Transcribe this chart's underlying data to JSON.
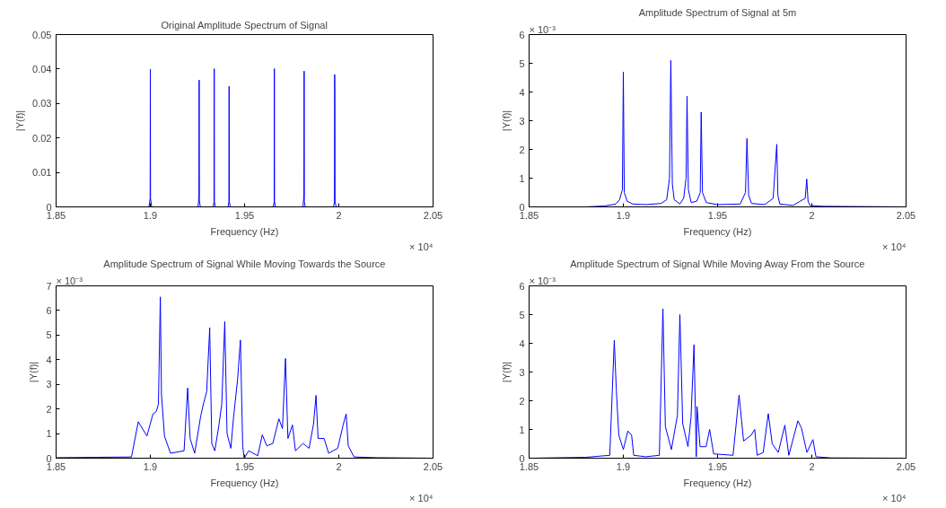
{
  "chart_data": [
    {
      "type": "line",
      "title": "Original Amplitude Spectrum of Signal",
      "xlabel": "Frequency (Hz)",
      "ylabel": "|Y(f)|",
      "xlim": [
        1.85,
        2.05
      ],
      "xticks": [
        1.85,
        1.9,
        1.95,
        2,
        2.05
      ],
      "ylim": [
        0,
        0.05
      ],
      "yticks": [
        0,
        0.01,
        0.02,
        0.03,
        0.04,
        0.05
      ],
      "grid": false,
      "annotations": [
        "× 10⁴"
      ],
      "series": [
        {
          "color": "#0000ff",
          "x": [
            1.85,
            1.8993,
            1.8999,
            1.9,
            1.9001,
            1.9007,
            1.9253,
            1.9258,
            1.9259,
            1.926,
            1.9265,
            1.9333,
            1.9338,
            1.9339,
            1.934,
            1.9345,
            1.9412,
            1.9417,
            1.9418,
            1.9419,
            1.9424,
            1.9652,
            1.9657,
            1.9658,
            1.9659,
            1.9664,
            1.981,
            1.9815,
            1.9816,
            1.9817,
            1.9822,
            1.9972,
            1.9977,
            1.9978,
            1.9979,
            1.998,
            1.9986,
            2.05
          ],
          "values": [
            0,
            0,
            0.0025,
            0.04,
            0.0025,
            0,
            0,
            0.003,
            0.0368,
            0.002,
            0,
            0,
            0.0015,
            0.0401,
            0.0015,
            0,
            0,
            0.0015,
            0.035,
            0.0015,
            0,
            0,
            0.0015,
            0.0401,
            0.0015,
            0,
            0,
            0.0035,
            0.0394,
            0.0015,
            0,
            0,
            0.0015,
            0.0384,
            0.0333,
            0.0015,
            0,
            0
          ]
        }
      ]
    },
    {
      "type": "line",
      "title": "Amplitude Spectrum of Signal at 5m",
      "xlabel": "Frequency (Hz)",
      "ylabel": "|Y(f)|",
      "xlim": [
        1.85,
        2.05
      ],
      "xticks": [
        1.85,
        1.9,
        1.95,
        2,
        2.05
      ],
      "ylim": [
        0,
        6
      ],
      "yticks": [
        0,
        1,
        2,
        3,
        4,
        5,
        6
      ],
      "grid": false,
      "annotations": [
        "× 10⁴",
        "× 10⁻³"
      ],
      "series": [
        {
          "color": "#0000ff",
          "x": [
            1.85,
            1.88,
            1.89,
            1.896,
            1.898,
            1.8995,
            1.9,
            1.9005,
            1.902,
            1.905,
            1.912,
            1.92,
            1.923,
            1.9245,
            1.9252,
            1.926,
            1.927,
            1.93,
            1.932,
            1.9333,
            1.9338,
            1.9345,
            1.936,
            1.939,
            1.9408,
            1.9413,
            1.942,
            1.944,
            1.95,
            1.962,
            1.9648,
            1.9656,
            1.9665,
            1.968,
            1.975,
            1.9795,
            1.981,
            1.9814,
            1.982,
            1.983,
            1.99,
            1.9965,
            1.9973,
            1.998,
            1.999,
            2.005,
            2.05
          ],
          "values": [
            0,
            0,
            0.03,
            0.1,
            0.25,
            0.6,
            4.7,
            0.5,
            0.2,
            0.1,
            0.08,
            0.12,
            0.25,
            1.0,
            5.1,
            0.8,
            0.25,
            0.1,
            0.3,
            1.0,
            3.85,
            0.6,
            0.15,
            0.2,
            0.5,
            3.3,
            0.5,
            0.15,
            0.08,
            0.1,
            0.5,
            2.38,
            0.4,
            0.12,
            0.08,
            0.3,
            1.8,
            2.18,
            0.4,
            0.1,
            0.05,
            0.3,
            0.97,
            0.2,
            0.05,
            0.02,
            0
          ]
        }
      ]
    },
    {
      "type": "line",
      "title": "Amplitude Spectrum of Signal While Moving Towards the Source",
      "xlabel": "Frequency (Hz)",
      "ylabel": "|Y(f)|",
      "xlim": [
        1.85,
        2.05
      ],
      "xticks": [
        1.85,
        1.9,
        1.95,
        2,
        2.05
      ],
      "ylim": [
        0,
        7
      ],
      "yticks": [
        0,
        1,
        2,
        3,
        4,
        5,
        6,
        7
      ],
      "grid": false,
      "annotations": [
        "× 10⁴",
        "× 10⁻³"
      ],
      "series": [
        {
          "color": "#0000ff",
          "x": [
            1.85,
            1.89,
            1.8936,
            1.8982,
            1.9014,
            1.9032,
            1.9043,
            1.9053,
            1.9059,
            1.9075,
            1.9107,
            1.9179,
            1.9198,
            1.9211,
            1.9235,
            1.9267,
            1.9283,
            1.9299,
            1.9315,
            1.9326,
            1.9342,
            1.9363,
            1.9379,
            1.9395,
            1.9407,
            1.9427,
            1.9442,
            1.9463,
            1.9478,
            1.949,
            1.9498,
            1.9522,
            1.957,
            1.9594,
            1.9618,
            1.965,
            1.9682,
            1.9701,
            1.9717,
            1.973,
            1.9754,
            1.977,
            1.981,
            1.9842,
            1.9866,
            1.9879,
            1.989,
            1.9922,
            1.9946,
            1.9994,
            2.0023,
            2.0039,
            2.005,
            2.0081,
            2.02,
            2.05
          ],
          "values": [
            0.02,
            0.05,
            1.48,
            0.9,
            1.8,
            1.9,
            2.2,
            6.55,
            2.6,
            0.9,
            0.2,
            0.3,
            2.85,
            0.8,
            0.2,
            1.7,
            2.25,
            2.7,
            5.3,
            0.6,
            0.3,
            1.3,
            2.2,
            5.55,
            1.0,
            0.4,
            1.7,
            3.2,
            4.8,
            0.5,
            0,
            0.3,
            0.1,
            0.95,
            0.5,
            0.6,
            1.6,
            1.2,
            4.05,
            0.8,
            1.35,
            0.3,
            0.6,
            0.4,
            1.4,
            2.55,
            0.8,
            0.8,
            0.2,
            0.4,
            1.35,
            1.8,
            0.5,
            0.05,
            0.02,
            0
          ]
        }
      ]
    },
    {
      "type": "line",
      "title": "Amplitude Spectrum of Signal While Moving Away From the Source",
      "xlabel": "Frequency (Hz)",
      "ylabel": "|Y(f)|",
      "xlim": [
        1.85,
        2.05
      ],
      "xticks": [
        1.85,
        1.9,
        1.95,
        2,
        2.05
      ],
      "ylim": [
        0,
        6
      ],
      "yticks": [
        0,
        1,
        2,
        3,
        4,
        5,
        6
      ],
      "grid": false,
      "annotations": [
        "× 10⁴",
        "× 10⁻³"
      ],
      "series": [
        {
          "color": "#0000ff",
          "x": [
            1.85,
            1.88,
            1.8928,
            1.8952,
            1.8963,
            1.8976,
            1.9,
            1.9024,
            1.9044,
            1.9055,
            1.9119,
            1.9191,
            1.921,
            1.9223,
            1.9255,
            1.9287,
            1.93,
            1.9315,
            1.9343,
            1.9359,
            1.9375,
            1.9387,
            1.9391,
            1.9407,
            1.9439,
            1.9458,
            1.9479,
            1.9582,
            1.9614,
            1.9638,
            1.9678,
            1.9697,
            1.971,
            1.9742,
            1.9769,
            1.979,
            1.9822,
            1.9857,
            1.9878,
            1.9926,
            1.9945,
            1.9974,
            2.0006,
            2.0022,
            2.01,
            2.05
          ],
          "values": [
            0,
            0.03,
            0.1,
            4.1,
            2.35,
            0.8,
            0.3,
            0.95,
            0.8,
            0.1,
            0.05,
            0.1,
            5.2,
            1.1,
            0.3,
            1.5,
            5.0,
            1.2,
            0.4,
            1.4,
            3.95,
            0.05,
            1.8,
            0.4,
            0.4,
            1.0,
            0.15,
            0.1,
            2.2,
            0.6,
            0.8,
            1.0,
            0.1,
            0.2,
            1.55,
            0.5,
            0.2,
            1.15,
            0.1,
            1.3,
            1.05,
            0.2,
            0.65,
            0.05,
            0.01,
            0
          ]
        }
      ]
    }
  ]
}
